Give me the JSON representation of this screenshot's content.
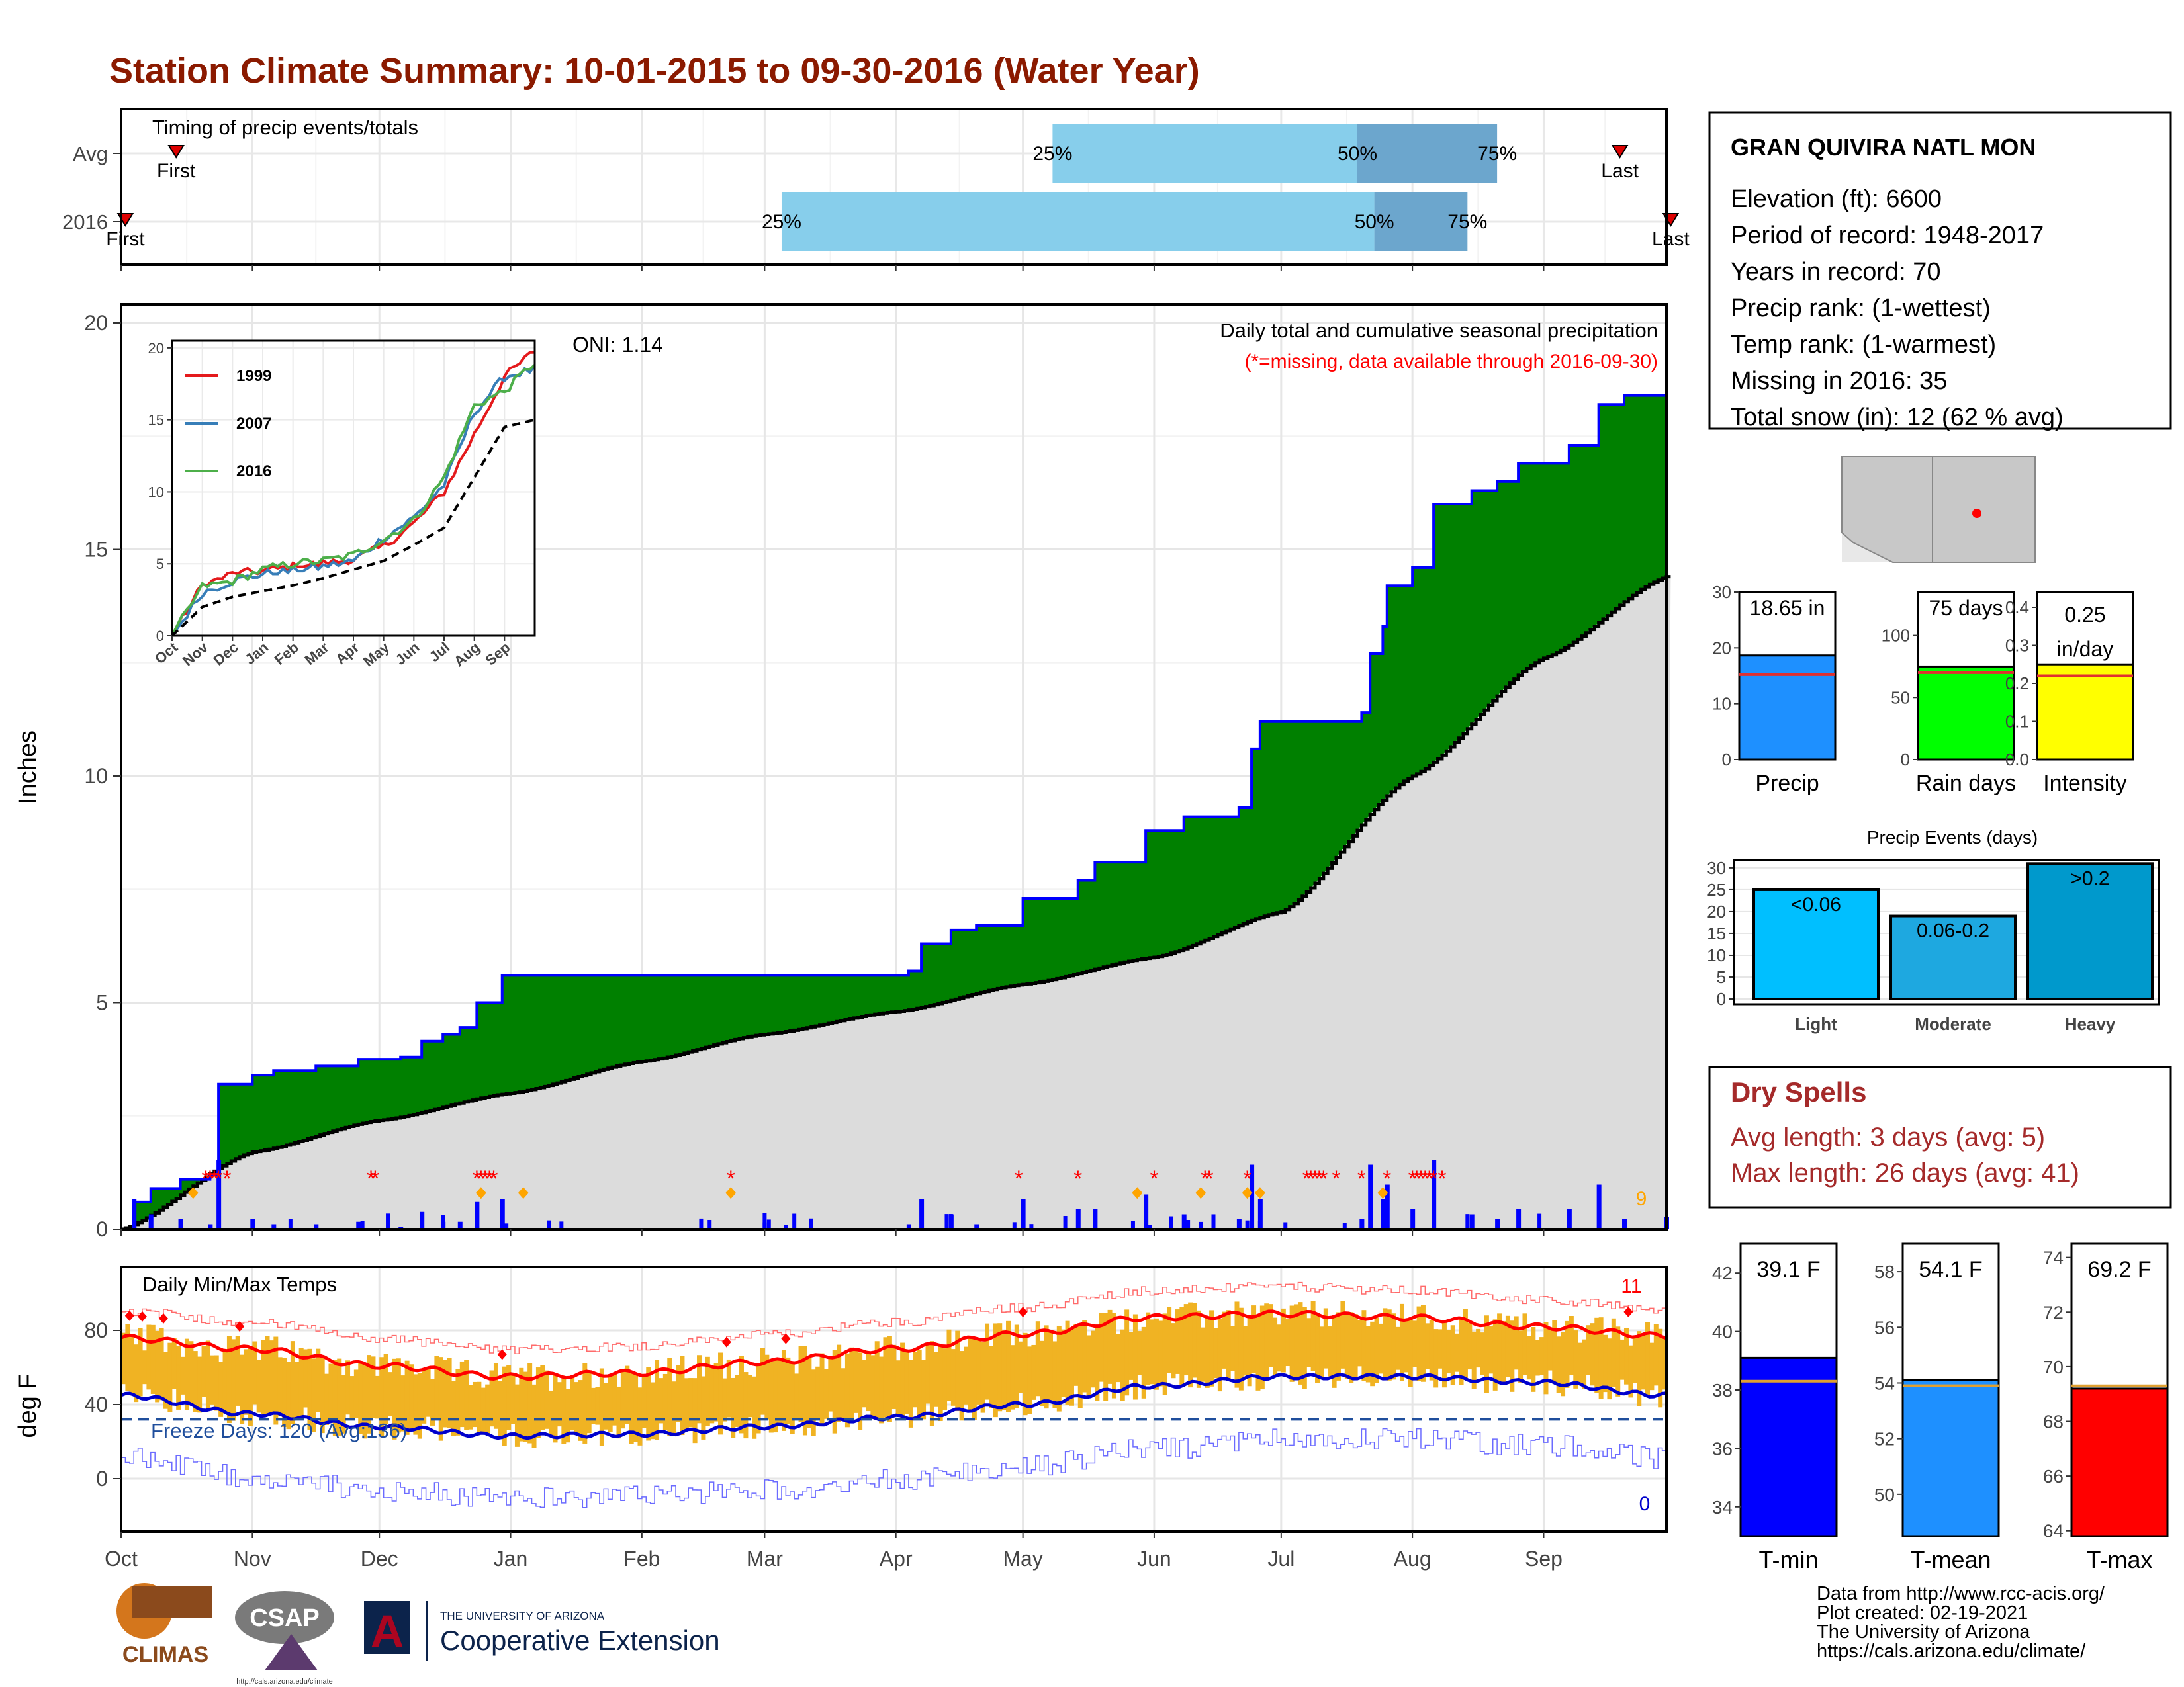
{
  "title": "Station Climate Summary: 10-01-2015 to 09-30-2016 (Water Year)",
  "months": [
    "Oct",
    "Nov",
    "Dec",
    "Jan",
    "Feb",
    "Mar",
    "Apr",
    "May",
    "Jun",
    "Jul",
    "Aug",
    "Sep"
  ],
  "timing": {
    "label": "Timing of precip events/totals",
    "rows": [
      {
        "name": "Avg",
        "first": "First",
        "last": "Last",
        "q25": "25%",
        "q50": "50%",
        "q75": "75%",
        "first_doy": 13,
        "q25_doy": 220,
        "q50_doy": 292,
        "q75_doy": 325,
        "last_doy": 354
      },
      {
        "name": "2016",
        "first": "First",
        "last": "Last",
        "q25": "25%",
        "q50": "50%",
        "q75": "75%",
        "first_doy": 1,
        "q25_doy": 156,
        "q50_doy": 296,
        "q75_doy": 318,
        "last_doy": 366
      }
    ]
  },
  "precip": {
    "ylabel": "Inches",
    "oni": "ONI: 1.14",
    "note_line1": "Daily total and cumulative seasonal precipitation",
    "note_line2": "(*=missing, data available through 2016-09-30)",
    "count_label": "9",
    "yticks": [
      "0",
      "5",
      "10",
      "15",
      "20"
    ]
  },
  "inset": {
    "yticks": [
      "0",
      "5",
      "10",
      "15",
      "20"
    ],
    "legend": [
      "1999",
      "2007",
      "2016"
    ]
  },
  "temps": {
    "label": "Daily Min/Max Temps",
    "ylabel": "deg F",
    "freeze": "Freeze Days: 120 (Avg:136)",
    "hot_count": "11",
    "cold_count": "0",
    "yticks": [
      "0",
      "40",
      "80"
    ]
  },
  "station": {
    "name": "GRAN QUIVIRA NATL MON",
    "lines": [
      "Elevation (ft): 6600",
      "Period of record: 1948-2017",
      "Years in record: 70",
      "Precip rank:  (1-wettest)",
      "Temp rank:  (1-warmest)",
      "Missing in 2016: 35",
      "Total snow (in): 12 (62 % avg)"
    ]
  },
  "mini_bars": [
    {
      "label": "Precip",
      "value_text": "18.65 in",
      "value": 18.65,
      "avg": 15.2,
      "max": 30,
      "ticks": [
        "0",
        "10",
        "20",
        "30"
      ],
      "color": "#1e90ff"
    },
    {
      "label": "Rain days",
      "value_text": "75 days",
      "value": 75,
      "avg": 70,
      "max": 135,
      "ticks": [
        "0",
        "50",
        "100"
      ],
      "color": "#00ff00"
    },
    {
      "label": "Intensity",
      "value_text": "0.25 in/day",
      "value_text_1": "0.25",
      "value_text_2": "in/day",
      "value": 0.25,
      "avg": 0.22,
      "max": 0.44,
      "ticks": [
        "0.0",
        "0.1",
        "0.2",
        "0.3",
        "0.4"
      ],
      "color": "#ffff00"
    }
  ],
  "events": {
    "title": "Precip Events (days)",
    "ticks": [
      "0",
      "5",
      "10",
      "15",
      "20",
      "25",
      "30"
    ],
    "bars": [
      {
        "label": "Light",
        "text": "<0.06",
        "value": 25,
        "color": "#00bfff"
      },
      {
        "label": "Moderate",
        "text": "0.06-0.2",
        "value": 19,
        "color": "#1ea8e0"
      },
      {
        "label": "Heavy",
        "text": ">0.2",
        "value": 31,
        "color": "#0099cc"
      }
    ]
  },
  "dry": {
    "title": "Dry Spells",
    "avg": "Avg length: 3 days (avg: 5)",
    "max": "Max length: 26 days (avg: 41)"
  },
  "temp_bars": [
    {
      "label": "T-min",
      "value_text": "39.1 F",
      "value": 39.1,
      "avg": 38.3,
      "min": 33,
      "max": 43,
      "ticks": [
        "34",
        "36",
        "38",
        "40",
        "42"
      ],
      "color": "#0000ff"
    },
    {
      "label": "T-mean",
      "value_text": "54.1 F",
      "value": 54.1,
      "avg": 53.9,
      "min": 48.5,
      "max": 59,
      "ticks": [
        "50",
        "52",
        "54",
        "56",
        "58"
      ],
      "color": "#1e90ff"
    },
    {
      "label": "T-max",
      "value_text": "69.2 F",
      "value": 69.2,
      "avg": 69.3,
      "min": 63.8,
      "max": 74.5,
      "ticks": [
        "64",
        "66",
        "68",
        "70",
        "72",
        "74"
      ],
      "color": "#ff0000"
    }
  ],
  "credits": [
    "Data from http://www.rcc-acis.org/",
    "Plot created: 02-19-2021",
    "The University of Arizona",
    "https://cals.arizona.edu/climate/"
  ],
  "logos": {
    "climas": "CLIMAS",
    "csap": "CSAP",
    "csap_url": "http://cals.arizona.edu/climate",
    "ua_line1": "THE UNIVERSITY OF ARIZONA",
    "ua_line2": "Cooperative Extension",
    "ua_mark": "A"
  },
  "chart_data": {
    "type": "area",
    "title": "Station Climate Summary: 10-01-2015 to 09-30-2016 (Water Year)",
    "ylabel": "Inches",
    "ylim": [
      0,
      20.5
    ],
    "xlim": [
      "2015-10-01",
      "2016-09-30"
    ],
    "series": [
      {
        "name": "2016",
        "type": "step",
        "x": [
          "2015-10-01",
          "2015-10-04",
          "2015-10-08",
          "2015-10-15",
          "2015-10-18",
          "2015-10-22",
          "2015-10-24",
          "2015-10-26",
          "2015-11-01",
          "2015-11-06",
          "2015-11-16",
          "2015-11-26",
          "2015-12-06",
          "2015-12-11",
          "2015-12-16",
          "2015-12-20",
          "2015-12-24",
          "2015-12-30",
          "2016-03-25",
          "2016-04-04",
          "2016-04-07",
          "2016-04-14",
          "2016-04-20",
          "2016-05-01",
          "2016-05-14",
          "2016-05-18",
          "2016-05-30",
          "2016-06-08",
          "2016-06-21",
          "2016-06-24",
          "2016-06-26",
          "2016-07-20",
          "2016-07-22",
          "2016-07-25",
          "2016-07-26",
          "2016-08-01",
          "2016-08-06",
          "2016-08-15",
          "2016-08-21",
          "2016-08-26",
          "2016-09-07",
          "2016-09-14",
          "2016-09-20",
          "2016-09-30"
        ],
        "y": [
          0,
          0.6,
          0.9,
          1.1,
          1.1,
          1.2,
          3.2,
          3.2,
          3.4,
          3.5,
          3.6,
          3.75,
          3.8,
          4.15,
          4.3,
          4.45,
          5.0,
          5.6,
          5.6,
          5.7,
          6.3,
          6.6,
          6.7,
          7.3,
          7.7,
          8.1,
          8.8,
          9.1,
          9.3,
          10.6,
          11.2,
          11.4,
          12.7,
          13.3,
          14.2,
          14.6,
          16.0,
          16.3,
          16.5,
          16.9,
          17.3,
          18.2,
          18.4,
          18.65
        ]
      },
      {
        "name": "Avg",
        "type": "cumulative",
        "x": [
          "2015-10-01",
          "2015-11-01",
          "2015-12-01",
          "2016-01-01",
          "2016-02-01",
          "2016-03-01",
          "2016-04-01",
          "2016-05-01",
          "2016-06-01",
          "2016-07-01",
          "2016-08-01",
          "2016-09-01",
          "2016-09-30"
        ],
        "y": [
          0,
          1.7,
          2.4,
          3.0,
          3.7,
          4.3,
          4.8,
          5.4,
          6.0,
          7.0,
          10.0,
          12.6,
          14.4
        ]
      }
    ],
    "inset": {
      "ylim": [
        0,
        20
      ],
      "x": [
        "Oct",
        "Nov",
        "Dec",
        "Jan",
        "Feb",
        "Mar",
        "Apr",
        "May",
        "Jun",
        "Jul",
        "Aug",
        "Sep",
        "Sep-end"
      ],
      "series": [
        {
          "name": "1999",
          "color": "#e41a1c",
          "values": [
            0,
            3.5,
            4.3,
            4.5,
            4.8,
            5.0,
            5.3,
            6.2,
            7.8,
            10.0,
            14.0,
            18.0,
            19.8
          ]
        },
        {
          "name": "2007",
          "color": "#377eb8",
          "values": [
            0,
            3.0,
            3.8,
            4.3,
            4.5,
            4.8,
            5.2,
            6.8,
            8.2,
            10.5,
            15.5,
            18.0,
            18.5
          ]
        },
        {
          "name": "2016",
          "color": "#4daf4a",
          "values": [
            0,
            3.4,
            3.8,
            4.6,
            5.0,
            5.2,
            5.6,
            6.7,
            8.0,
            11.0,
            16.0,
            17.0,
            19.0
          ]
        },
        {
          "name": "Avg",
          "color": "#000000",
          "values": [
            0,
            2.0,
            2.7,
            3.1,
            3.5,
            4.0,
            4.6,
            5.2,
            6.3,
            7.5,
            11.0,
            14.5,
            15.0
          ]
        }
      ]
    },
    "temperature": {
      "ylim": [
        -25,
        105
      ],
      "max_smooth_x": [
        "Oct",
        "Nov",
        "Dec",
        "Jan",
        "Feb",
        "Mar",
        "Apr",
        "May",
        "Jun",
        "Jul",
        "Aug",
        "Sep",
        "Sep-end"
      ],
      "max_smooth": [
        76,
        70,
        61,
        55,
        57,
        63,
        70,
        78,
        87,
        89,
        87,
        82,
        77
      ],
      "min_smooth": [
        45,
        35,
        28,
        23,
        24,
        28,
        33,
        40,
        50,
        55,
        55,
        52,
        45
      ],
      "freeze_line": 32
    }
  }
}
